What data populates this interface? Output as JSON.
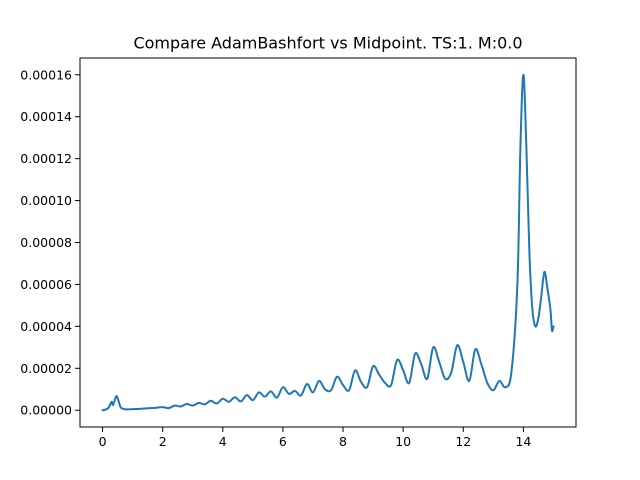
{
  "chart_data": {
    "type": "line",
    "title": "Compare AdamBashfort vs Midpoint. TS:1. M:0.0",
    "xlabel": "",
    "ylabel": "",
    "xlim": [
      -0.75,
      15.75
    ],
    "ylim": [
      -8e-06,
      0.000168
    ],
    "grid": false,
    "x_ticks": [
      0,
      2,
      4,
      6,
      8,
      10,
      12,
      14
    ],
    "x_tick_labels": [
      "0",
      "2",
      "4",
      "6",
      "8",
      "10",
      "12",
      "14"
    ],
    "y_ticks": [
      0,
      2e-05,
      4e-05,
      6e-05,
      8e-05,
      0.0001,
      0.00012,
      0.00014,
      0.00016
    ],
    "y_tick_labels": [
      "0.00000",
      "0.00002",
      "0.00004",
      "0.00006",
      "0.00008",
      "0.00010",
      "0.00012",
      "0.00014",
      "0.00016"
    ],
    "series": [
      {
        "color": "#1f77b4",
        "points": [
          [
            0.0,
            0.0
          ],
          [
            0.1,
            3e-07
          ],
          [
            0.2,
            1.2e-06
          ],
          [
            0.3,
            4e-06
          ],
          [
            0.35,
            2.5e-06
          ],
          [
            0.45,
            6.5e-06
          ],
          [
            0.5,
            5.8e-06
          ],
          [
            0.6,
            1.5e-06
          ],
          [
            0.7,
            6e-07
          ],
          [
            0.8,
            4e-07
          ],
          [
            1.0,
            5e-07
          ],
          [
            1.3,
            7e-07
          ],
          [
            1.6,
            1e-06
          ],
          [
            1.8,
            1.2e-06
          ],
          [
            2.0,
            1.5e-06
          ],
          [
            2.2,
            1e-06
          ],
          [
            2.4,
            2.2e-06
          ],
          [
            2.6,
            1.8e-06
          ],
          [
            2.8,
            3e-06
          ],
          [
            3.0,
            2.2e-06
          ],
          [
            3.2,
            3.5e-06
          ],
          [
            3.4,
            2.8e-06
          ],
          [
            3.6,
            4.5e-06
          ],
          [
            3.8,
            3.2e-06
          ],
          [
            4.0,
            5.5e-06
          ],
          [
            4.2,
            4e-06
          ],
          [
            4.4,
            6.2e-06
          ],
          [
            4.6,
            4.2e-06
          ],
          [
            4.8,
            7.2e-06
          ],
          [
            5.0,
            4.8e-06
          ],
          [
            5.2,
            8.5e-06
          ],
          [
            5.4,
            6.5e-06
          ],
          [
            5.6,
            9e-06
          ],
          [
            5.8,
            6e-06
          ],
          [
            6.0,
            1.1e-05
          ],
          [
            6.2,
            7.8e-06
          ],
          [
            6.4,
            9.2e-06
          ],
          [
            6.6,
            7e-06
          ],
          [
            6.8,
            1.25e-05
          ],
          [
            7.0,
            8.5e-06
          ],
          [
            7.2,
            1.4e-05
          ],
          [
            7.4,
            1e-05
          ],
          [
            7.6,
            9.5e-06
          ],
          [
            7.8,
            1.6e-05
          ],
          [
            8.0,
            1.2e-05
          ],
          [
            8.2,
            9.5e-06
          ],
          [
            8.4,
            1.9e-05
          ],
          [
            8.6,
            1.35e-05
          ],
          [
            8.8,
            1.1e-05
          ],
          [
            9.0,
            2.1e-05
          ],
          [
            9.2,
            1.7e-05
          ],
          [
            9.4,
            1.3e-05
          ],
          [
            9.6,
            1.2e-05
          ],
          [
            9.8,
            2.4e-05
          ],
          [
            10.0,
            1.9e-05
          ],
          [
            10.2,
            1.3e-05
          ],
          [
            10.4,
            2.7e-05
          ],
          [
            10.6,
            2.2e-05
          ],
          [
            10.8,
            1.5e-05
          ],
          [
            11.0,
            3e-05
          ],
          [
            11.2,
            2.3e-05
          ],
          [
            11.4,
            1.5e-05
          ],
          [
            11.6,
            1.8e-05
          ],
          [
            11.8,
            3.1e-05
          ],
          [
            12.0,
            2.3e-05
          ],
          [
            12.2,
            1.4e-05
          ],
          [
            12.4,
            2.9e-05
          ],
          [
            12.6,
            2.2e-05
          ],
          [
            12.8,
            1.3e-05
          ],
          [
            13.0,
            9.5e-06
          ],
          [
            13.2,
            1.4e-05
          ],
          [
            13.4,
            1.1e-05
          ],
          [
            13.6,
            1.8e-05
          ],
          [
            13.8,
            6e-05
          ],
          [
            13.9,
            0.000125
          ],
          [
            14.0,
            0.00016
          ],
          [
            14.1,
            0.000125
          ],
          [
            14.2,
            7.5e-05
          ],
          [
            14.3,
            4.8e-05
          ],
          [
            14.4,
            4e-05
          ],
          [
            14.5,
            4.4e-05
          ],
          [
            14.6,
            5.5e-05
          ],
          [
            14.7,
            6.6e-05
          ],
          [
            14.8,
            5.8e-05
          ],
          [
            14.9,
            4.8e-05
          ],
          [
            14.95,
            3.8e-05
          ],
          [
            15.0,
            4e-05
          ]
        ]
      }
    ]
  }
}
